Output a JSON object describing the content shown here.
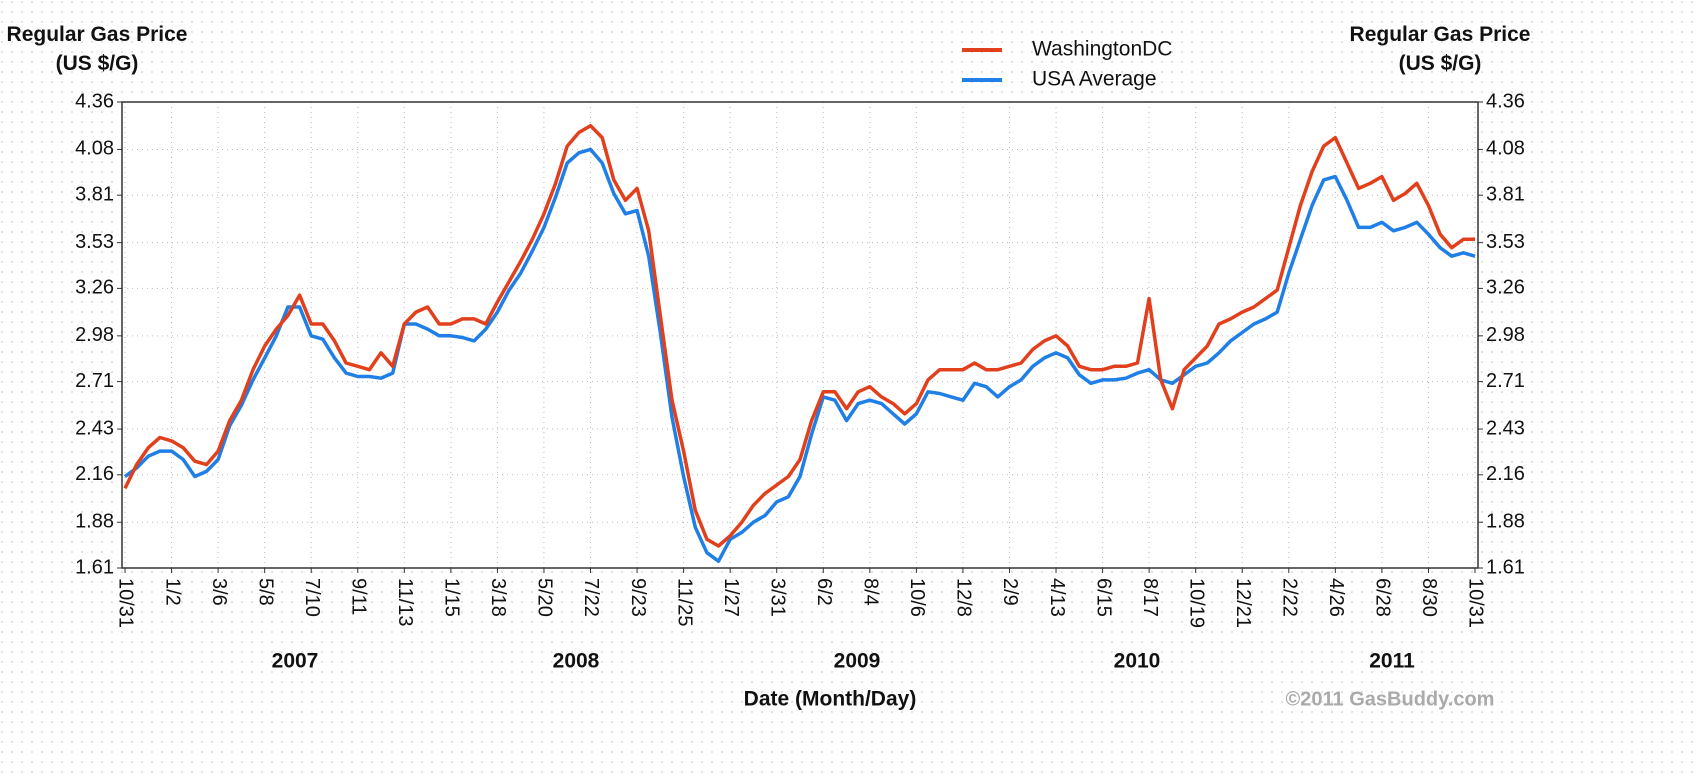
{
  "chart_data": {
    "type": "line",
    "ylabel": "Regular Gas Price (US $/G)",
    "y2label": "Regular Gas Price (US $/G)",
    "xlabel": "Date (Month/Day)",
    "credit": "©2011 GasBuddy.com",
    "year_labels": [
      "2007",
      "2008",
      "2009",
      "2010",
      "2011"
    ],
    "categories": [
      "10/31",
      null,
      null,
      null,
      "1/2",
      null,
      null,
      null,
      "3/6",
      null,
      null,
      null,
      "5/8",
      null,
      null,
      null,
      "7/10",
      null,
      null,
      null,
      "9/11",
      null,
      null,
      null,
      "11/13",
      null,
      null,
      null,
      "1/15",
      null,
      null,
      null,
      "3/18",
      null,
      null,
      null,
      "5/20",
      null,
      null,
      null,
      "7/22",
      null,
      null,
      null,
      "9/23",
      null,
      null,
      null,
      "11/25",
      null,
      null,
      null,
      "1/27",
      null,
      null,
      null,
      "3/31",
      null,
      null,
      null,
      "6/2",
      null,
      null,
      null,
      "8/4",
      null,
      null,
      null,
      "10/6",
      null,
      null,
      null,
      "12/8",
      null,
      null,
      null,
      "2/9",
      null,
      null,
      null,
      "4/13",
      null,
      null,
      null,
      "6/15",
      null,
      null,
      null,
      "8/17",
      null,
      null,
      null,
      "10/19",
      null,
      null,
      null,
      "12/21",
      null,
      null,
      null,
      "2/22",
      null,
      null,
      null,
      "4/26",
      null,
      null,
      null,
      "6/28",
      null,
      null,
      null,
      "8/30",
      null,
      null,
      null,
      "10/31"
    ],
    "series": [
      {
        "name": "WashingtonDC",
        "color": "#e2401c",
        "values": [
          2.08,
          2.22,
          2.32,
          2.38,
          2.36,
          2.32,
          2.24,
          2.22,
          2.3,
          2.48,
          2.6,
          2.78,
          2.92,
          3.02,
          3.1,
          3.22,
          3.05,
          3.05,
          2.95,
          2.82,
          2.8,
          2.78,
          2.88,
          2.8,
          3.05,
          3.12,
          3.15,
          3.05,
          3.05,
          3.08,
          3.08,
          3.05,
          3.18,
          3.3,
          3.42,
          3.55,
          3.7,
          3.88,
          4.1,
          4.18,
          4.22,
          4.15,
          3.9,
          3.78,
          3.85,
          3.6,
          3.1,
          2.6,
          2.3,
          1.95,
          1.78,
          1.74,
          1.8,
          1.88,
          1.98,
          2.05,
          2.1,
          2.15,
          2.25,
          2.48,
          2.65,
          2.65,
          2.55,
          2.65,
          2.68,
          2.62,
          2.58,
          2.52,
          2.58,
          2.72,
          2.78,
          2.78,
          2.78,
          2.82,
          2.78,
          2.78,
          2.8,
          2.82,
          2.9,
          2.95,
          2.98,
          2.92,
          2.8,
          2.78,
          2.78,
          2.8,
          2.8,
          2.82,
          3.2,
          2.72,
          2.55,
          2.78,
          2.85,
          2.92,
          3.05,
          3.08,
          3.12,
          3.15,
          3.2,
          3.25,
          3.5,
          3.75,
          3.95,
          4.1,
          4.15,
          4.0,
          3.85,
          3.88,
          3.92,
          3.78,
          3.82,
          3.88,
          3.75,
          3.58,
          3.5,
          3.55,
          3.55
        ]
      },
      {
        "name": "USA Average",
        "color": "#1f7fe6",
        "values": [
          2.15,
          2.2,
          2.27,
          2.3,
          2.3,
          2.25,
          2.15,
          2.18,
          2.25,
          2.45,
          2.57,
          2.72,
          2.85,
          2.98,
          3.15,
          3.15,
          2.98,
          2.96,
          2.85,
          2.76,
          2.74,
          2.74,
          2.73,
          2.76,
          3.05,
          3.05,
          3.02,
          2.98,
          2.98,
          2.97,
          2.95,
          3.02,
          3.12,
          3.25,
          3.35,
          3.48,
          3.62,
          3.8,
          4.0,
          4.06,
          4.08,
          4.0,
          3.82,
          3.7,
          3.72,
          3.45,
          3.0,
          2.5,
          2.15,
          1.85,
          1.7,
          1.65,
          1.78,
          1.82,
          1.88,
          1.92,
          2.0,
          2.03,
          2.15,
          2.4,
          2.62,
          2.6,
          2.48,
          2.58,
          2.6,
          2.58,
          2.52,
          2.46,
          2.52,
          2.65,
          2.64,
          2.62,
          2.6,
          2.7,
          2.68,
          2.62,
          2.68,
          2.72,
          2.8,
          2.85,
          2.88,
          2.85,
          2.75,
          2.7,
          2.72,
          2.72,
          2.73,
          2.76,
          2.78,
          2.72,
          2.7,
          2.75,
          2.8,
          2.82,
          2.88,
          2.95,
          3.0,
          3.05,
          3.08,
          3.12,
          3.35,
          3.55,
          3.75,
          3.9,
          3.92,
          3.78,
          3.62,
          3.62,
          3.65,
          3.6,
          3.62,
          3.65,
          3.58,
          3.5,
          3.45,
          3.47,
          3.45
        ]
      }
    ],
    "ylim": [
      1.61,
      4.36
    ],
    "yticks": [
      1.61,
      1.88,
      2.16,
      2.43,
      2.71,
      2.98,
      3.26,
      3.53,
      3.81,
      4.08,
      4.36
    ],
    "y2lim": [
      1.61,
      4.36
    ],
    "y2ticks": [
      1.61,
      1.88,
      2.16,
      2.43,
      2.71,
      2.98,
      3.26,
      3.53,
      3.81,
      4.08,
      4.36
    ],
    "grid": true,
    "legend": "top"
  }
}
